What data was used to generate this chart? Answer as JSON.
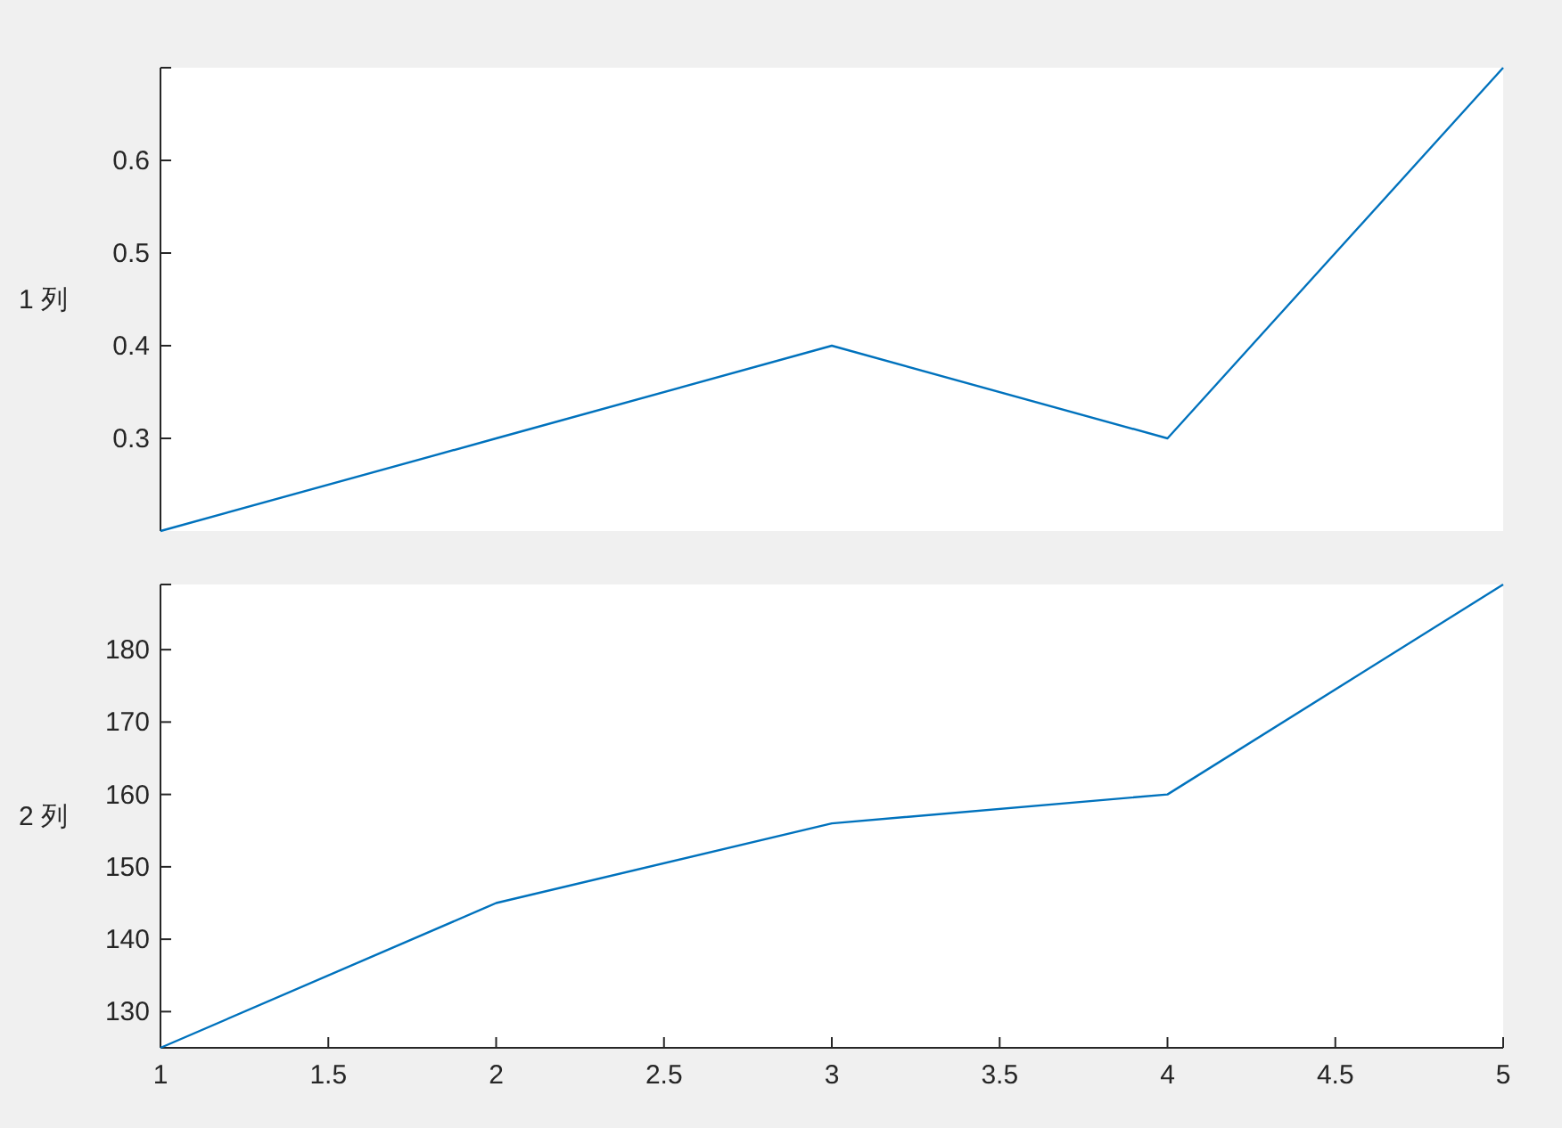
{
  "chart_data": [
    {
      "type": "line",
      "ylabel": "1 列",
      "x": [
        1,
        2,
        3,
        4,
        5
      ],
      "values": [
        0.2,
        0.3,
        0.4,
        0.3,
        0.7
      ],
      "color": "#0072bd",
      "xlim": [
        1,
        5
      ],
      "ylim": [
        0.2,
        0.7
      ],
      "yticks": [
        0.3,
        0.4,
        0.5,
        0.6
      ],
      "tick_labels": "y"
    },
    {
      "type": "line",
      "ylabel": "2 列",
      "x": [
        1,
        2,
        3,
        4,
        5
      ],
      "values": [
        125,
        145,
        156,
        160,
        189
      ],
      "color": "#0072bd",
      "xlim": [
        1,
        5
      ],
      "ylim": [
        125,
        189
      ],
      "xticks": [
        1,
        1.5,
        2,
        2.5,
        3,
        3.5,
        4,
        4.5,
        5
      ],
      "yticks": [
        130,
        140,
        150,
        160,
        170,
        180
      ]
    }
  ]
}
